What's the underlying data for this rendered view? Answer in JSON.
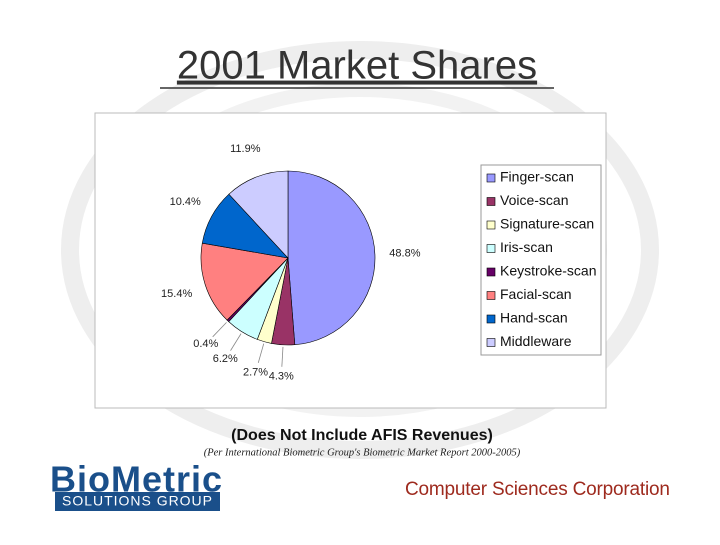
{
  "chart_data": {
    "type": "pie",
    "title": "2001 Market Shares",
    "categories": [
      "Finger-scan",
      "Voice-scan",
      "Signature-scan",
      "Iris-scan",
      "Keystroke-scan",
      "Facial-scan",
      "Hand-scan",
      "Middleware"
    ],
    "values": [
      48.8,
      4.3,
      2.7,
      6.2,
      0.4,
      15.4,
      10.4,
      11.9
    ],
    "value_labels": [
      "48.8%",
      "4.3%",
      "2.7%",
      "6.2%",
      "0.4%",
      "15.4%",
      "10.4%",
      "11.9%"
    ],
    "colors": [
      "#9999ff",
      "#993366",
      "#ffffcc",
      "#ccffff",
      "#660066",
      "#ff8080",
      "#0066cc",
      "#ccccff"
    ],
    "legend": "right",
    "subtitle": "(Does Not Include AFIS Revenues)",
    "source": "(Per International Biometric Group's Biometric Market Report 2000-2005)"
  },
  "footer": {
    "logo_main": "BioMetric",
    "logo_sub": "SOLUTIONS GROUP",
    "company": "Computer Sciences Corporation"
  }
}
